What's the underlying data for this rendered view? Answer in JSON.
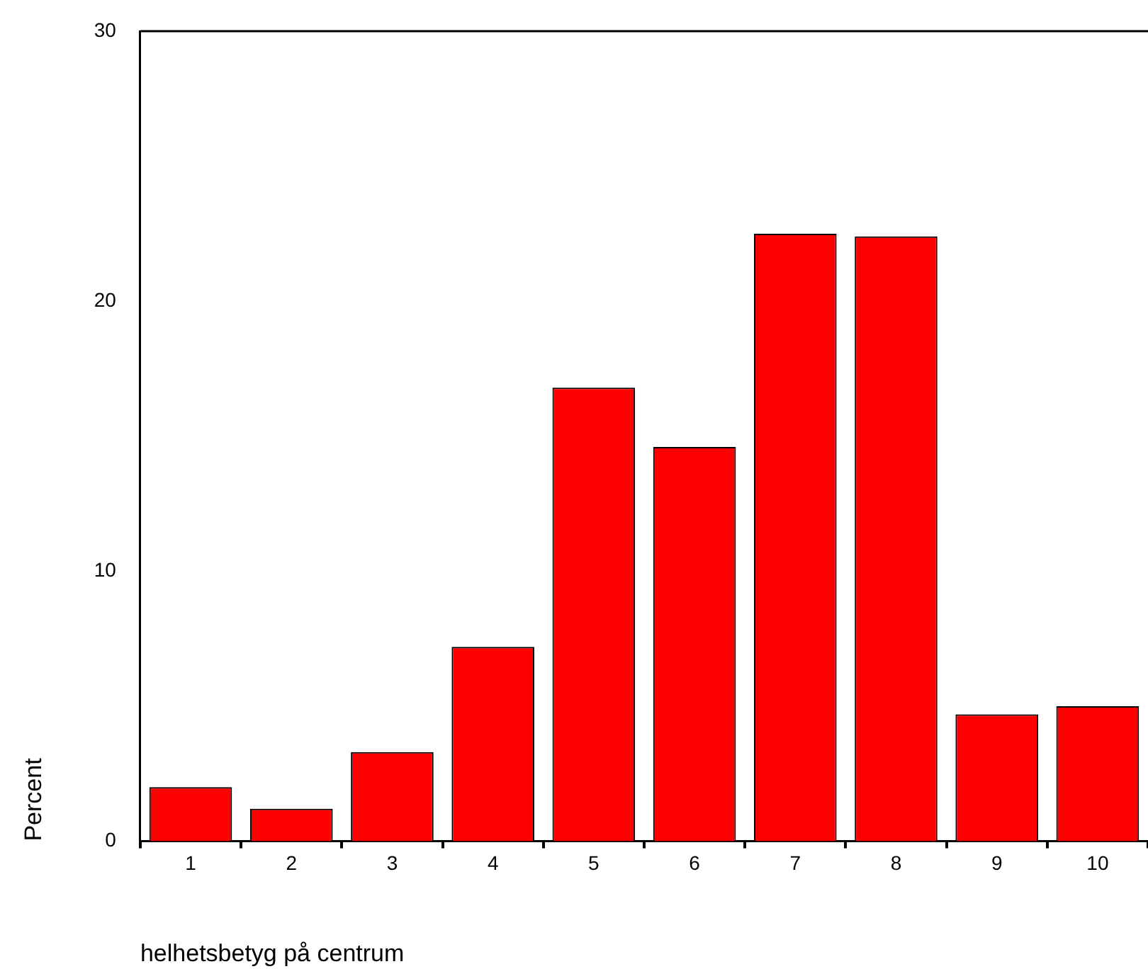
{
  "chart_data": {
    "type": "bar",
    "xlabel": "helhetsbetyg på centrum",
    "ylabel": "Percent",
    "categories": [
      "1",
      "2",
      "3",
      "4",
      "5",
      "6",
      "7",
      "8",
      "9",
      "10"
    ],
    "values": [
      2.0,
      1.2,
      3.3,
      7.2,
      16.8,
      14.6,
      22.5,
      22.4,
      4.7,
      5.0
    ],
    "color": "#ff0000",
    "ylim": [
      0,
      30
    ],
    "yticks": [
      0,
      10,
      20,
      30
    ]
  }
}
